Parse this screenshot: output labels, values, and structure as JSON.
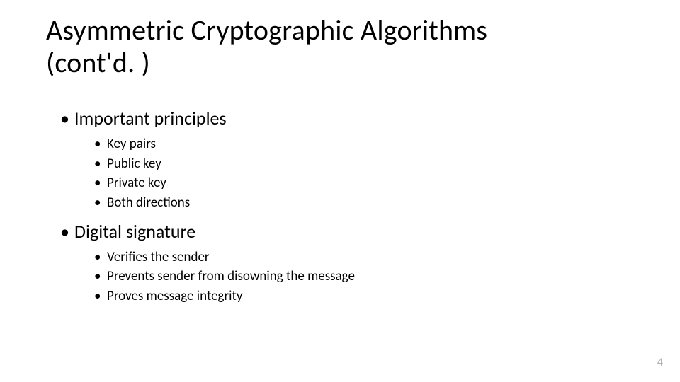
{
  "slide": {
    "title_line1": "Asymmetric Cryptographic Algorithms",
    "title_line2": "(cont'd. )",
    "page_number": "4",
    "background_color": "#ffffff",
    "title_color": "#000000",
    "body_color": "#000000",
    "pagenum_color": "#b0b0b0",
    "title_fontsize": 40,
    "lvl1_fontsize": 26,
    "lvl2_fontsize": 19,
    "bullets": [
      {
        "text": "Important principles",
        "sub": [
          "Key pairs",
          "Public key",
          "Private key",
          "Both directions"
        ]
      },
      {
        "text": "Digital signature",
        "sub": [
          "Verifies the sender",
          "Prevents sender from disowning the message",
          "Proves message integrity"
        ]
      }
    ]
  }
}
